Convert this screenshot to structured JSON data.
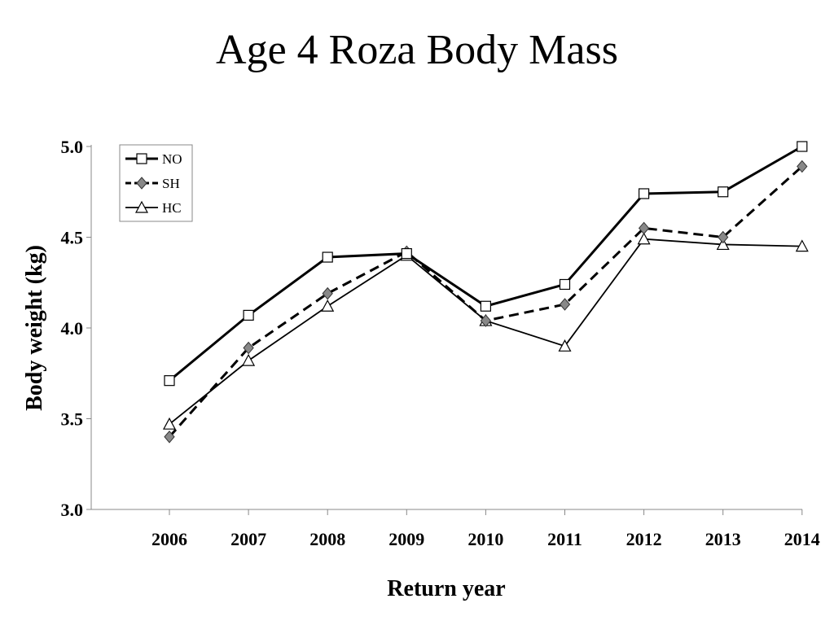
{
  "chart_data": {
    "type": "line",
    "title": "Age 4 Roza Body Mass",
    "xlabel": "Return year",
    "ylabel": "Body weight (kg)",
    "x": [
      2006,
      2007,
      2008,
      2009,
      2010,
      2011,
      2012,
      2013,
      2014
    ],
    "x_tick_labels": [
      "2006",
      "2007",
      "2008",
      "2009",
      "2010",
      "2011",
      "2012",
      "2013",
      "2014"
    ],
    "y_tick_labels": [
      "3.0",
      "3.5",
      "4.0",
      "4.5",
      "5.0"
    ],
    "ylim": [
      3.0,
      5.0
    ],
    "grid": false,
    "legend_position": "top-left",
    "series": [
      {
        "name": "NO",
        "values": [
          3.71,
          4.07,
          4.39,
          4.41,
          4.12,
          4.24,
          4.74,
          4.75,
          5.0
        ],
        "color": "#000000",
        "marker": "square",
        "line_style": "solid-thick"
      },
      {
        "name": "SH",
        "values": [
          3.4,
          3.89,
          4.19,
          4.42,
          4.04,
          4.13,
          4.55,
          4.5,
          4.89
        ],
        "color": "#000000",
        "marker": "diamond",
        "marker_fill": "#888888",
        "line_style": "dashed"
      },
      {
        "name": "HC",
        "values": [
          3.47,
          3.82,
          4.12,
          4.4,
          4.04,
          3.9,
          4.49,
          4.46,
          4.45
        ],
        "color": "#000000",
        "marker": "triangle",
        "line_style": "solid-thin"
      }
    ]
  }
}
